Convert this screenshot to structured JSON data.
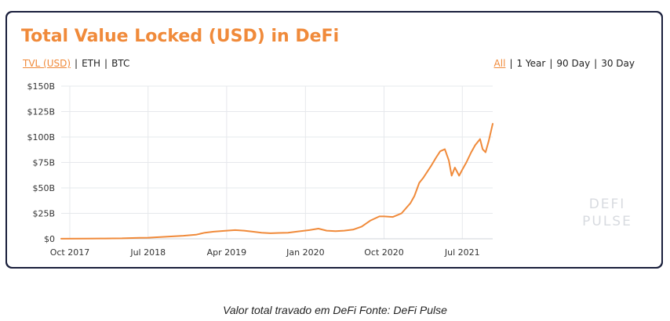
{
  "card": {
    "title": "Total Value Locked (USD) in DeFi",
    "currency_tabs": [
      {
        "label": "TVL (USD)",
        "active": true
      },
      {
        "label": "ETH",
        "active": false
      },
      {
        "label": "BTC",
        "active": false
      }
    ],
    "range_tabs": [
      {
        "label": "All",
        "active": true
      },
      {
        "label": "1 Year",
        "active": false
      },
      {
        "label": "90 Day",
        "active": false
      },
      {
        "label": "30 Day",
        "active": false
      }
    ],
    "watermark_line1": "DEFI",
    "watermark_line2": "PULSE"
  },
  "caption": "Valor total travado em DeFi Fonte: DeFi Pulse",
  "colors": {
    "accent": "#f08a3a",
    "frame": "#1a1f3c",
    "grid": "#e6e8ec"
  },
  "chart_data": {
    "type": "line",
    "title": "Total Value Locked (USD) in DeFi",
    "xlabel": "",
    "ylabel": "",
    "ylim": [
      0,
      150
    ],
    "y_unit": "billion USD",
    "y_ticks": [
      0,
      25,
      50,
      75,
      100,
      125,
      150
    ],
    "y_tick_labels": [
      "$0",
      "$25B",
      "$50B",
      "$75B",
      "$100B",
      "$125B",
      "$150B"
    ],
    "x_ticks": [
      "2017-10-01",
      "2018-07-01",
      "2019-04-01",
      "2020-01-01",
      "2020-10-01",
      "2021-07-01"
    ],
    "x_tick_labels": [
      "Oct 2017",
      "Jul 2018",
      "Apr 2019",
      "Jan 2020",
      "Oct 2020",
      "Jul 2021"
    ],
    "xlim": [
      "2017-09-01",
      "2021-10-15"
    ],
    "grid": true,
    "series": [
      {
        "color": "#f08a3a",
        "points": [
          [
            "2017-09-01",
            0.1
          ],
          [
            "2017-12-01",
            0.2
          ],
          [
            "2018-02-01",
            0.3
          ],
          [
            "2018-04-01",
            0.5
          ],
          [
            "2018-06-01",
            1.0
          ],
          [
            "2018-07-01",
            1.1
          ],
          [
            "2018-09-01",
            2.0
          ],
          [
            "2018-11-01",
            3.0
          ],
          [
            "2018-12-15",
            4.0
          ],
          [
            "2019-01-15",
            6.0
          ],
          [
            "2019-02-15",
            7.0
          ],
          [
            "2019-04-01",
            8.0
          ],
          [
            "2019-05-01",
            8.5
          ],
          [
            "2019-06-01",
            8.0
          ],
          [
            "2019-07-01",
            7.0
          ],
          [
            "2019-08-01",
            6.0
          ],
          [
            "2019-09-01",
            5.5
          ],
          [
            "2019-10-01",
            5.8
          ],
          [
            "2019-11-01",
            6.0
          ],
          [
            "2019-12-01",
            7.0
          ],
          [
            "2020-01-15",
            8.5
          ],
          [
            "2020-02-15",
            10.0
          ],
          [
            "2020-03-15",
            8.0
          ],
          [
            "2020-04-15",
            7.5
          ],
          [
            "2020-05-15",
            8.0
          ],
          [
            "2020-06-15",
            9.0
          ],
          [
            "2020-07-15",
            12.0
          ],
          [
            "2020-08-15",
            18.0
          ],
          [
            "2020-09-15",
            22.0
          ],
          [
            "2020-10-01",
            22.0
          ],
          [
            "2020-11-01",
            21.5
          ],
          [
            "2020-12-01",
            25.0
          ],
          [
            "2021-01-01",
            35.0
          ],
          [
            "2021-01-15",
            42.0
          ],
          [
            "2021-02-01",
            55.0
          ],
          [
            "2021-02-15",
            60.0
          ],
          [
            "2021-03-01",
            66.0
          ],
          [
            "2021-03-15",
            72.0
          ],
          [
            "2021-04-01",
            80.0
          ],
          [
            "2021-04-15",
            86.0
          ],
          [
            "2021-05-01",
            88.0
          ],
          [
            "2021-05-15",
            77.0
          ],
          [
            "2021-05-25",
            62.0
          ],
          [
            "2021-06-05",
            70.0
          ],
          [
            "2021-06-20",
            62.0
          ],
          [
            "2021-07-01",
            68.0
          ],
          [
            "2021-07-15",
            75.0
          ],
          [
            "2021-08-01",
            85.0
          ],
          [
            "2021-08-15",
            92.0
          ],
          [
            "2021-09-01",
            98.0
          ],
          [
            "2021-09-10",
            88.0
          ],
          [
            "2021-09-20",
            85.0
          ],
          [
            "2021-10-01",
            96.0
          ],
          [
            "2021-10-15",
            113.0
          ]
        ]
      }
    ]
  }
}
